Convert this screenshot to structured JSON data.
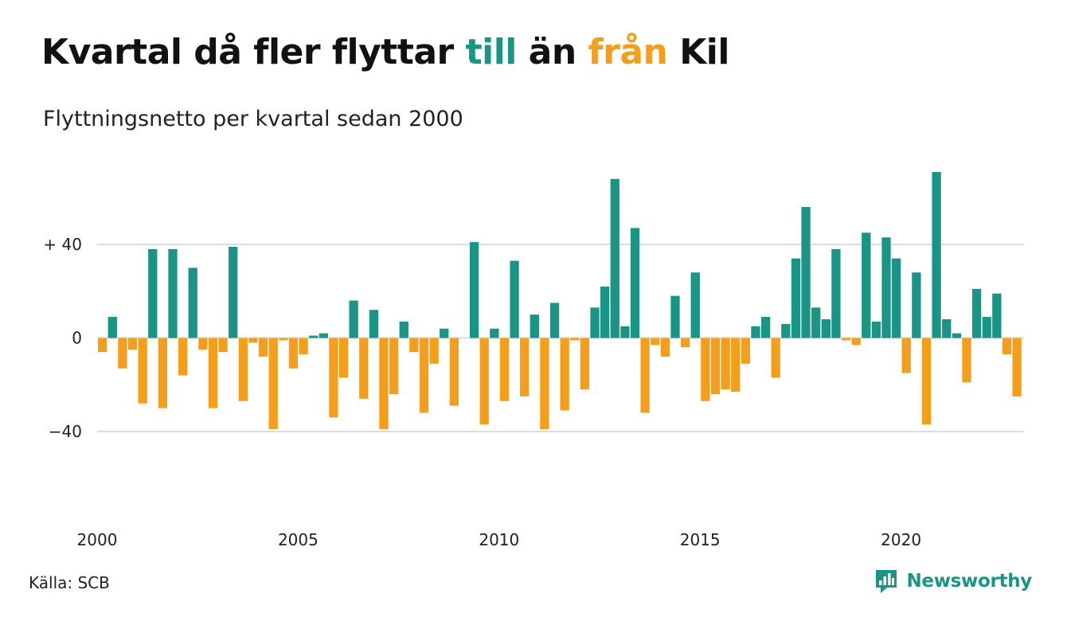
{
  "title": {
    "part1": "Kvartal då fler flyttar ",
    "till": "till",
    "part2": " än ",
    "fran": "från",
    "part3": " Kil"
  },
  "subtitle": "Flyttningsnetto per kvartal sedan 2000",
  "source": "Källa: SCB",
  "brand": "Newsworthy",
  "colors": {
    "positive": "#1a9585",
    "negative": "#f59e1b",
    "grid": "#dddddd"
  },
  "chart_data": {
    "type": "bar",
    "title": "Kvartal då fler flyttar till än från Kil",
    "subtitle": "Flyttningsnetto per kvartal sedan 2000",
    "xlabel": "",
    "ylabel": "",
    "ylim": [
      -75,
      75
    ],
    "grid": true,
    "y_ticks": [
      {
        "value": 40,
        "label": "+ 40"
      },
      {
        "value": 0,
        "label": "0"
      },
      {
        "value": -40,
        "label": "−40"
      }
    ],
    "x_ticks": [
      "2000",
      "2005",
      "2010",
      "2015",
      "2020"
    ],
    "start_year": 2000,
    "start_quarter": 1,
    "values": [
      -6,
      9,
      -13,
      -5,
      -28,
      38,
      -30,
      38,
      -16,
      30,
      -5,
      -30,
      -6,
      39,
      -27,
      -2,
      -8,
      -39,
      -1,
      -13,
      -7,
      1,
      2,
      -34,
      -17,
      16,
      -26,
      12,
      -39,
      -24,
      7,
      -6,
      -32,
      -11,
      4,
      -29,
      0,
      41,
      -37,
      4,
      -27,
      33,
      -25,
      10,
      -39,
      15,
      -31,
      -1,
      -22,
      13,
      22,
      68,
      5,
      47,
      -32,
      -3,
      -8,
      18,
      -4,
      28,
      -27,
      -24,
      -22,
      -23,
      -11,
      5,
      9,
      -17,
      6,
      34,
      56,
      13,
      8,
      38,
      -1,
      -3,
      45,
      7,
      43,
      34,
      -15,
      28,
      -37,
      71,
      8,
      2,
      -19,
      21,
      9,
      19,
      -7,
      -25
    ]
  }
}
